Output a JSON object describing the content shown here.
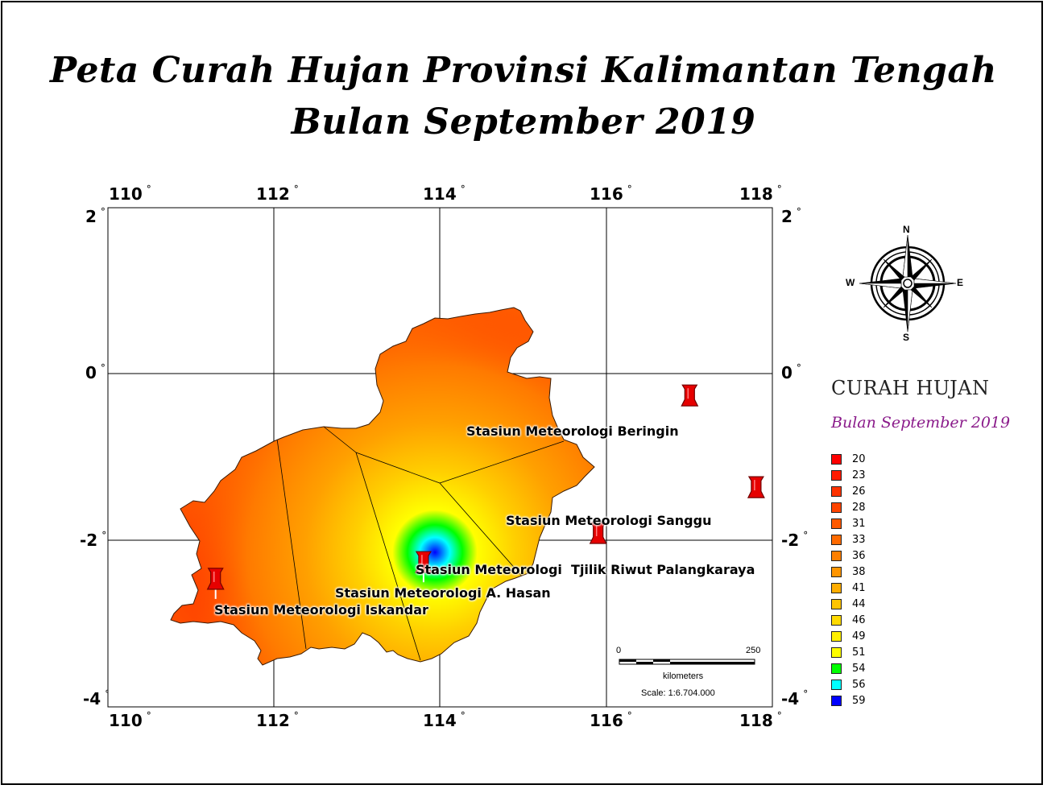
{
  "title": {
    "line1": "Peta Curah Hujan Provinsi Kalimantan Tengah",
    "line2": "Bulan September 2019"
  },
  "grid": {
    "longitudes": [
      "110",
      "112",
      "114",
      "116",
      "118"
    ],
    "latitudes": [
      "2",
      "0",
      "-2",
      "-4"
    ],
    "degree_symbol": "°"
  },
  "stations": [
    {
      "name": "Stasiun Meteorologi Beringin",
      "lon": 114.5,
      "lat": -0.35
    },
    {
      "name": "Stasiun Meteorologi Sanggu",
      "lon": 114.9,
      "lat": -1.45
    },
    {
      "name": "Stasiun Meteorologi  Tjilik Riwut Palangkaraya",
      "lon": 113.95,
      "lat": -2.0
    },
    {
      "name": "Stasiun Meteorologi A. Hasan",
      "lon": 112.9,
      "lat": -2.35
    },
    {
      "name": "Stasiun Meteorologi Iskandar",
      "lon": 111.65,
      "lat": -2.55
    }
  ],
  "compass": {
    "n": "N",
    "s": "S",
    "e": "E",
    "w": "W"
  },
  "legend": {
    "title": "CURAH HUJAN",
    "subtitle": "Bulan September 2019",
    "items": [
      {
        "label": "20",
        "color": "#ff0000"
      },
      {
        "label": "23",
        "color": "#ff1a00"
      },
      {
        "label": "26",
        "color": "#ff3300"
      },
      {
        "label": "28",
        "color": "#ff4400"
      },
      {
        "label": "31",
        "color": "#ff5a00"
      },
      {
        "label": "33",
        "color": "#ff6a00"
      },
      {
        "label": "36",
        "color": "#ff8000"
      },
      {
        "label": "38",
        "color": "#ff9500"
      },
      {
        "label": "41",
        "color": "#ffad00"
      },
      {
        "label": "44",
        "color": "#ffc400"
      },
      {
        "label": "46",
        "color": "#ffda00"
      },
      {
        "label": "49",
        "color": "#fff000"
      },
      {
        "label": "51",
        "color": "#ffff00"
      },
      {
        "label": "54",
        "color": "#00ff00"
      },
      {
        "label": "56",
        "color": "#00ffff"
      },
      {
        "label": "59",
        "color": "#0000ff"
      }
    ]
  },
  "scalebar": {
    "start": "0",
    "end": "250",
    "unit": "kilometers",
    "scale": "Scale: 1:6.704.000"
  }
}
